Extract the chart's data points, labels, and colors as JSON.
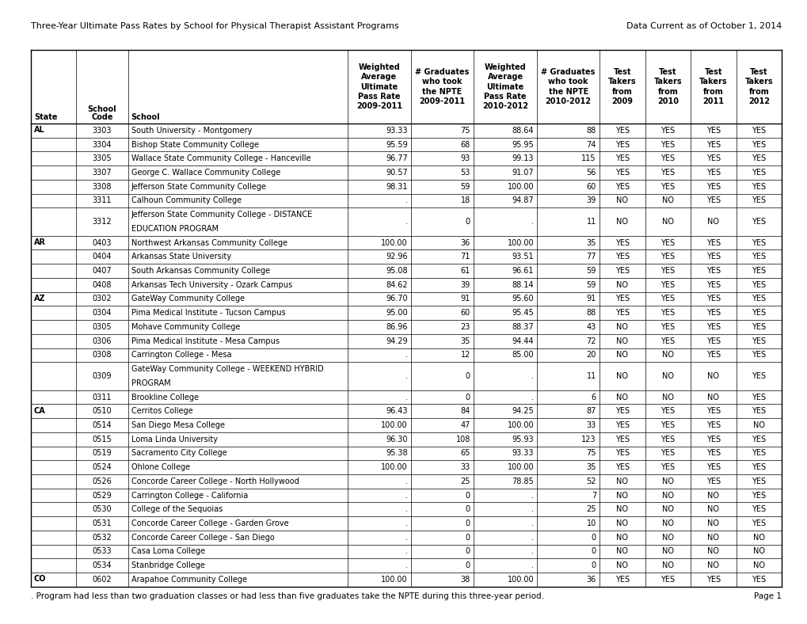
{
  "title_left": "Three-Year Ultimate Pass Rates by School for Physical Therapist Assistant Programs",
  "title_right": "Data Current as of October 1, 2014",
  "footer": ". Program had less than two graduation classes or had less than five graduates take the NPTE during this three-year period.",
  "footer_right": "Page 1",
  "rows": [
    [
      "AL",
      "3303",
      "South University - Montgomery",
      "93.33",
      "75",
      "88.64",
      "88",
      "YES",
      "YES",
      "YES",
      "YES"
    ],
    [
      "",
      "3304",
      "Bishop State Community College",
      "95.59",
      "68",
      "95.95",
      "74",
      "YES",
      "YES",
      "YES",
      "YES"
    ],
    [
      "",
      "3305",
      "Wallace State Community College - Hanceville",
      "96.77",
      "93",
      "99.13",
      "115",
      "YES",
      "YES",
      "YES",
      "YES"
    ],
    [
      "",
      "3307",
      "George C. Wallace Community College",
      "90.57",
      "53",
      "91.07",
      "56",
      "YES",
      "YES",
      "YES",
      "YES"
    ],
    [
      "",
      "3308",
      "Jefferson State Community College",
      "98.31",
      "59",
      "100.00",
      "60",
      "YES",
      "YES",
      "YES",
      "YES"
    ],
    [
      "",
      "3311",
      "Calhoun Community College",
      ".",
      "18",
      "94.87",
      "39",
      "NO",
      "NO",
      "YES",
      "YES"
    ],
    [
      "",
      "3312",
      "Jefferson State Community College - DISTANCE\nEDUCATION PROGRAM",
      ".",
      "0",
      ".",
      "11",
      "NO",
      "NO",
      "NO",
      "YES"
    ],
    [
      "AR",
      "0403",
      "Northwest Arkansas Community College",
      "100.00",
      "36",
      "100.00",
      "35",
      "YES",
      "YES",
      "YES",
      "YES"
    ],
    [
      "",
      "0404",
      "Arkansas State University",
      "92.96",
      "71",
      "93.51",
      "77",
      "YES",
      "YES",
      "YES",
      "YES"
    ],
    [
      "",
      "0407",
      "South Arkansas Community College",
      "95.08",
      "61",
      "96.61",
      "59",
      "YES",
      "YES",
      "YES",
      "YES"
    ],
    [
      "",
      "0408",
      "Arkansas Tech University - Ozark Campus",
      "84.62",
      "39",
      "88.14",
      "59",
      "NO",
      "YES",
      "YES",
      "YES"
    ],
    [
      "AZ",
      "0302",
      "GateWay Community College",
      "96.70",
      "91",
      "95.60",
      "91",
      "YES",
      "YES",
      "YES",
      "YES"
    ],
    [
      "",
      "0304",
      "Pima Medical Institute - Tucson Campus",
      "95.00",
      "60",
      "95.45",
      "88",
      "YES",
      "YES",
      "YES",
      "YES"
    ],
    [
      "",
      "0305",
      "Mohave Community College",
      "86.96",
      "23",
      "88.37",
      "43",
      "NO",
      "YES",
      "YES",
      "YES"
    ],
    [
      "",
      "0306",
      "Pima Medical Institute - Mesa Campus",
      "94.29",
      "35",
      "94.44",
      "72",
      "NO",
      "YES",
      "YES",
      "YES"
    ],
    [
      "",
      "0308",
      "Carrington College - Mesa",
      ".",
      "12",
      "85.00",
      "20",
      "NO",
      "NO",
      "YES",
      "YES"
    ],
    [
      "",
      "0309",
      "GateWay Community College - WEEKEND HYBRID\nPROGRAM",
      ".",
      "0",
      ".",
      "11",
      "NO",
      "NO",
      "NO",
      "YES"
    ],
    [
      "",
      "0311",
      "Brookline College",
      ".",
      "0",
      ".",
      "6",
      "NO",
      "NO",
      "NO",
      "YES"
    ],
    [
      "CA",
      "0510",
      "Cerritos College",
      "96.43",
      "84",
      "94.25",
      "87",
      "YES",
      "YES",
      "YES",
      "YES"
    ],
    [
      "",
      "0514",
      "San Diego Mesa College",
      "100.00",
      "47",
      "100.00",
      "33",
      "YES",
      "YES",
      "YES",
      "NO"
    ],
    [
      "",
      "0515",
      "Loma Linda University",
      "96.30",
      "108",
      "95.93",
      "123",
      "YES",
      "YES",
      "YES",
      "YES"
    ],
    [
      "",
      "0519",
      "Sacramento City College",
      "95.38",
      "65",
      "93.33",
      "75",
      "YES",
      "YES",
      "YES",
      "YES"
    ],
    [
      "",
      "0524",
      "Ohlone College",
      "100.00",
      "33",
      "100.00",
      "35",
      "YES",
      "YES",
      "YES",
      "YES"
    ],
    [
      "",
      "0526",
      "Concorde Career College - North Hollywood",
      ".",
      "25",
      "78.85",
      "52",
      "NO",
      "NO",
      "YES",
      "YES"
    ],
    [
      "",
      "0529",
      "Carrington College - California",
      ".",
      "0",
      ".",
      "7",
      "NO",
      "NO",
      "NO",
      "YES"
    ],
    [
      "",
      "0530",
      "College of the Sequoias",
      ".",
      "0",
      ".",
      "25",
      "NO",
      "NO",
      "NO",
      "YES"
    ],
    [
      "",
      "0531",
      "Concorde Career College - Garden Grove",
      ".",
      "0",
      ".",
      "10",
      "NO",
      "NO",
      "NO",
      "YES"
    ],
    [
      "",
      "0532",
      "Concorde Career College - San Diego",
      ".",
      "0",
      ".",
      "0",
      "NO",
      "NO",
      "NO",
      "NO"
    ],
    [
      "",
      "0533",
      "Casa Loma College",
      ".",
      "0",
      ".",
      "0",
      "NO",
      "NO",
      "NO",
      "NO"
    ],
    [
      "",
      "0534",
      "Stanbridge College",
      ".",
      "0",
      ".",
      "0",
      "NO",
      "NO",
      "NO",
      "NO"
    ],
    [
      "CO",
      "0602",
      "Arapahoe Community College",
      "100.00",
      "38",
      "100.00",
      "36",
      "YES",
      "YES",
      "YES",
      "YES"
    ]
  ],
  "col_widths_pts": [
    38,
    43,
    183,
    53,
    52,
    53,
    52,
    38,
    38,
    38,
    38
  ],
  "header_lines": [
    [
      "",
      "",
      "",
      "Weighted",
      "# Graduates",
      "Weighted",
      "# Graduates",
      "Test",
      "Test",
      "Test",
      "Test"
    ],
    [
      "",
      "",
      "",
      "Average",
      "who took",
      "Average",
      "who took",
      "Takers",
      "Takers",
      "Takers",
      "Takers"
    ],
    [
      "",
      "",
      "",
      "Ultimate",
      "the NPTE",
      "Ultimate",
      "the NPTE",
      "from",
      "from",
      "from",
      "from"
    ],
    [
      "",
      "School",
      "",
      "Pass Rate",
      "2009-2011",
      "Pass Rate",
      "2010-2012",
      "2009",
      "2010",
      "2011",
      "2012"
    ],
    [
      "State",
      "Code",
      "School",
      "2009-2011",
      "",
      "2010-2012",
      "",
      "",
      "",
      "",
      ""
    ]
  ],
  "font_size": 7.0,
  "header_font_size": 7.0,
  "title_font_size": 8.0,
  "footer_font_size": 7.5
}
